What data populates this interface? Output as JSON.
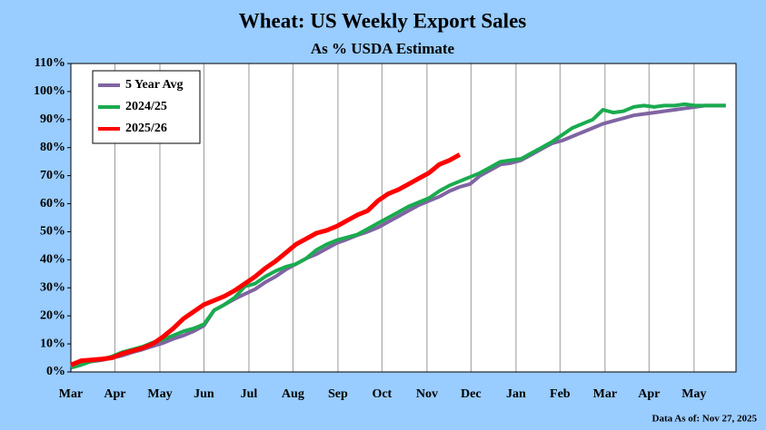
{
  "chart_data": {
    "type": "line",
    "title": "Wheat: US Weekly Export Sales",
    "subtitle": "As % USDA Estimate",
    "footnote": "Data As of: Nov 27, 2025",
    "x": [
      0,
      1,
      2,
      3,
      4,
      5,
      6,
      7,
      8,
      9,
      10,
      11,
      12,
      13,
      14,
      15,
      16,
      17,
      18,
      19,
      20,
      21,
      22,
      23,
      24,
      25,
      26,
      27,
      28,
      29,
      30,
      31,
      32,
      33,
      34,
      35,
      36,
      37,
      38,
      39,
      40,
      41,
      42,
      43,
      44,
      45,
      46,
      47,
      48,
      49,
      50,
      51,
      52,
      53,
      54,
      55,
      56,
      57,
      58,
      59,
      60,
      61,
      62,
      63,
      64
    ],
    "xlim": [
      0,
      65
    ],
    "xticks": [
      {
        "value": 0,
        "label": "Mar"
      },
      {
        "value": 4.3,
        "label": "Apr"
      },
      {
        "value": 8.7,
        "label": "May"
      },
      {
        "value": 13,
        "label": "Jun"
      },
      {
        "value": 17.4,
        "label": "Jul"
      },
      {
        "value": 21.7,
        "label": "Aug"
      },
      {
        "value": 26.1,
        "label": "Sep"
      },
      {
        "value": 30.4,
        "label": "Oct"
      },
      {
        "value": 34.8,
        "label": "Nov"
      },
      {
        "value": 39.1,
        "label": "Dec"
      },
      {
        "value": 43.5,
        "label": "Jan"
      },
      {
        "value": 47.8,
        "label": "Feb"
      },
      {
        "value": 52.2,
        "label": "Mar"
      },
      {
        "value": 56.5,
        "label": "Apr"
      },
      {
        "value": 60.9,
        "label": "May"
      }
    ],
    "ylim": [
      0,
      110
    ],
    "yticks": [
      {
        "value": 0,
        "label": "0%"
      },
      {
        "value": 10,
        "label": "10%"
      },
      {
        "value": 20,
        "label": "20%"
      },
      {
        "value": 30,
        "label": "30%"
      },
      {
        "value": 40,
        "label": "40%"
      },
      {
        "value": 50,
        "label": "50%"
      },
      {
        "value": 60,
        "label": "60%"
      },
      {
        "value": 70,
        "label": "70%"
      },
      {
        "value": 80,
        "label": "80%"
      },
      {
        "value": 90,
        "label": "90%"
      },
      {
        "value": 100,
        "label": "100%"
      },
      {
        "value": 110,
        "label": "110%"
      }
    ],
    "grid": true,
    "legend": "top-left",
    "series": [
      {
        "name": "5 Year Avg",
        "color": "#8064a2",
        "values": [
          2,
          3,
          3.7,
          4.2,
          5,
          5.8,
          7,
          8,
          9.2,
          10.3,
          11.8,
          13,
          14.5,
          16.5,
          22,
          24,
          26,
          27.8,
          29.5,
          32,
          34,
          36.5,
          38.5,
          40.5,
          42,
          44,
          46,
          47.3,
          48.8,
          50,
          51.5,
          53.5,
          55.5,
          57.5,
          59.5,
          61,
          62.5,
          64.5,
          66,
          67,
          70,
          72,
          74,
          74.5,
          75.5,
          77.5,
          79.5,
          81.5,
          82.5,
          84,
          85.5,
          87,
          88.5,
          89.5,
          90.5,
          91.5,
          92,
          92.5,
          93,
          93.5,
          94,
          94.5,
          95,
          95,
          95
        ]
      },
      {
        "name": "2024/25",
        "color": "#1aab4f",
        "values": [
          1.5,
          2.5,
          3.8,
          4.5,
          5.5,
          7,
          8,
          9,
          10.5,
          11.5,
          13,
          14.5,
          15.5,
          17,
          22,
          24,
          26.5,
          30.5,
          31.5,
          34,
          36,
          37.5,
          38.5,
          40.5,
          43.5,
          45.5,
          47,
          48,
          49,
          51,
          53,
          55,
          57,
          59,
          60.5,
          62,
          64.5,
          66.5,
          68,
          69.5,
          71,
          73,
          75,
          75.5,
          76,
          78,
          80,
          82,
          84.5,
          87,
          88.5,
          90,
          93.5,
          92.5,
          93,
          94.5,
          95,
          94.5,
          95,
          95,
          95.5,
          95,
          95,
          95,
          95
        ]
      },
      {
        "name": "2025/26",
        "color": "#ff0000",
        "values": [
          2.5,
          4,
          4.3,
          4.6,
          5,
          6.5,
          7.5,
          8.5,
          10,
          12.5,
          15.5,
          19,
          21.5,
          24,
          25.5,
          27,
          29,
          31.5,
          34,
          37,
          39.5,
          42.5,
          45.5,
          47.5,
          49.5,
          50.5,
          52,
          54,
          56,
          57.5,
          61,
          63.5,
          65,
          67,
          69,
          71,
          74,
          75.5,
          77.5,
          null,
          null,
          null,
          null,
          null,
          null,
          null,
          null,
          null,
          null,
          null,
          null,
          null,
          null,
          null,
          null,
          null,
          null,
          null,
          null,
          null,
          null,
          null,
          null,
          null,
          null
        ]
      }
    ]
  }
}
